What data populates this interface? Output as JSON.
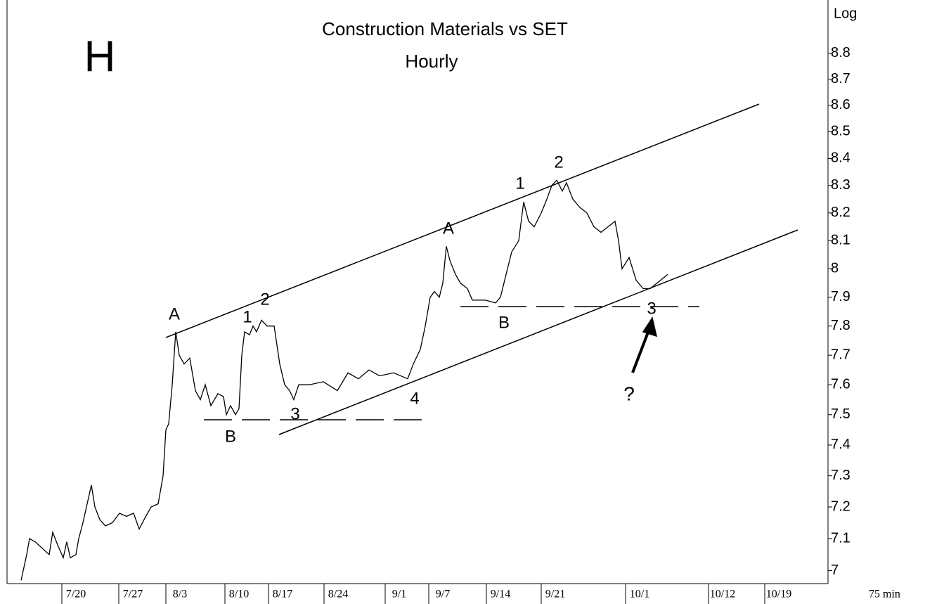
{
  "chart_data": {
    "type": "line",
    "title": "Construction Materials vs SET",
    "subtitle": "Hourly",
    "y_axis_label": "Log",
    "x_axis_label": "75 min",
    "log_scale": true,
    "color": "#000000",
    "annotations": [
      "H",
      "A",
      "1",
      "2",
      "B",
      "3",
      "4",
      "A",
      "1",
      "2",
      "B",
      "3",
      "?"
    ],
    "xlim": [
      0,
      1168
    ],
    "xticks": [
      {
        "value": 98,
        "label": "7/20"
      },
      {
        "value": 179,
        "label": "7/27"
      },
      {
        "value": 246,
        "label": "8/3"
      },
      {
        "value": 330,
        "label": "8/10"
      },
      {
        "value": 392,
        "label": "8/17"
      },
      {
        "value": 471,
        "label": "8/24"
      },
      {
        "value": 558,
        "label": "9/1"
      },
      {
        "value": 620,
        "label": "9/7"
      },
      {
        "value": 702,
        "label": "9/14"
      },
      {
        "value": 780,
        "label": "9/21"
      },
      {
        "value": 900,
        "label": "10/1"
      },
      {
        "value": 1018,
        "label": "10/12"
      },
      {
        "value": 1098,
        "label": "10/19"
      }
    ],
    "ylim": [
      6.96,
      9.01
    ],
    "yticks": [
      7,
      7.1,
      7.2,
      7.3,
      7.4,
      7.5,
      7.6,
      7.7,
      7.8,
      7.9,
      8,
      8.1,
      8.2,
      8.3,
      8.4,
      8.5,
      8.6,
      8.7,
      8.8
    ],
    "x": [
      20,
      28,
      32,
      40,
      50,
      60,
      65,
      72,
      80,
      85,
      90,
      98,
      102,
      108,
      115,
      120,
      125,
      132,
      140,
      150,
      160,
      170,
      180,
      188,
      195,
      205,
      215,
      222,
      226,
      230,
      235,
      240,
      245,
      252,
      260,
      268,
      275,
      282,
      290,
      300,
      308,
      312,
      318,
      325,
      330,
      334,
      338,
      345,
      350,
      355,
      362,
      370,
      380,
      388,
      395,
      402,
      408,
      415,
      430,
      450,
      470,
      485,
      500,
      515,
      530,
      550,
      570,
      578,
      588,
      595,
      602,
      608,
      615,
      620,
      625,
      630,
      638,
      645,
      655,
      662,
      680,
      695,
      702,
      710,
      718,
      728,
      735,
      742,
      750,
      760,
      768,
      775,
      782,
      790,
      796,
      805,
      815,
      825,
      835,
      845,
      855,
      865,
      870,
      875,
      885,
      895,
      905,
      915,
      925,
      940
    ],
    "series": [
      {
        "name": "Construction Materials vs SET",
        "color": "#000000",
        "values": [
          6.97,
          7.05,
          7.1,
          7.09,
          7.07,
          7.05,
          7.12,
          7.08,
          7.04,
          7.09,
          7.04,
          7.05,
          7.1,
          7.15,
          7.22,
          7.27,
          7.2,
          7.16,
          7.14,
          7.15,
          7.18,
          7.17,
          7.18,
          7.13,
          7.16,
          7.2,
          7.21,
          7.3,
          7.45,
          7.47,
          7.6,
          7.78,
          7.7,
          7.67,
          7.69,
          7.58,
          7.55,
          7.6,
          7.53,
          7.57,
          7.56,
          7.5,
          7.53,
          7.5,
          7.52,
          7.7,
          7.78,
          7.77,
          7.8,
          7.78,
          7.82,
          7.8,
          7.8,
          7.67,
          7.6,
          7.58,
          7.55,
          7.6,
          7.6,
          7.61,
          7.58,
          7.64,
          7.62,
          7.65,
          7.63,
          7.64,
          7.62,
          7.67,
          7.72,
          7.8,
          7.9,
          7.92,
          7.9,
          7.95,
          8.08,
          8.03,
          7.98,
          7.95,
          7.93,
          7.89,
          7.89,
          7.88,
          7.9,
          7.98,
          8.06,
          8.1,
          8.24,
          8.17,
          8.15,
          8.2,
          8.25,
          8.3,
          8.32,
          8.28,
          8.31,
          8.25,
          8.22,
          8.2,
          8.15,
          8.13,
          8.15,
          8.17,
          8.1,
          8.0,
          8.04,
          7.96,
          7.93,
          7.93,
          7.95,
          7.98
        ]
      }
    ]
  }
}
